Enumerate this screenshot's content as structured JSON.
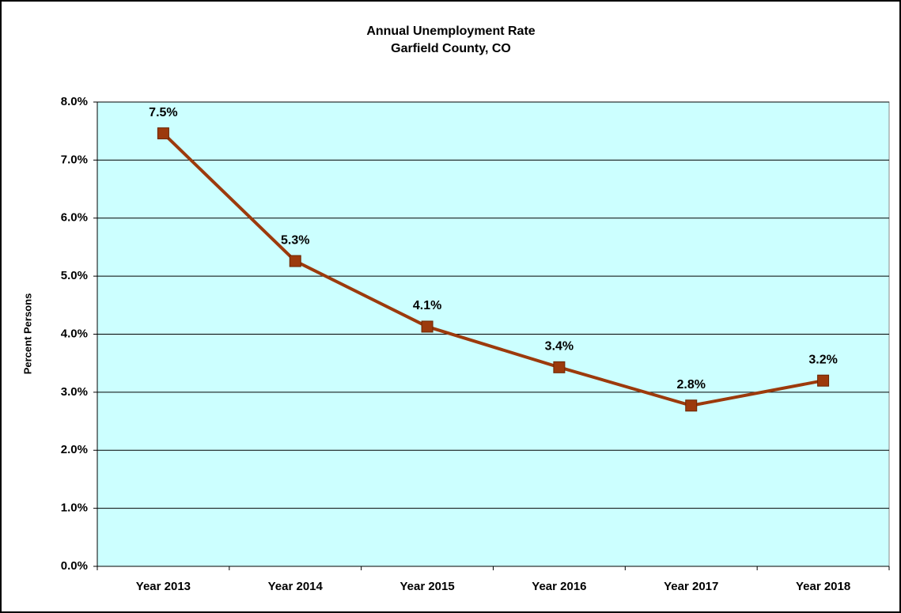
{
  "chart_data": {
    "type": "line",
    "title": "Annual Unemployment Rate",
    "subtitle": "Garfield County, CO",
    "y_label": "Percent Persons",
    "categories": [
      "Year 2013",
      "Year 2014",
      "Year 2015",
      "Year 2016",
      "Year 2017",
      "Year 2018"
    ],
    "series": [
      {
        "name": "Unemployment Rate",
        "color": "#9c3a0c",
        "values": [
          7.46,
          5.26,
          4.13,
          3.43,
          2.77,
          3.2
        ],
        "value_labels": [
          "7.5%",
          "5.3%",
          "4.1%",
          "3.4%",
          "2.8%",
          "3.2%"
        ]
      }
    ],
    "ylim": [
      0,
      8
    ],
    "yticks": [
      {
        "value": 0,
        "label": "0.0%"
      },
      {
        "value": 1,
        "label": "1.0%"
      },
      {
        "value": 2,
        "label": "2.0%"
      },
      {
        "value": 3,
        "label": "3.0%"
      },
      {
        "value": 4,
        "label": "4.0%"
      },
      {
        "value": 5,
        "label": "5.0%"
      },
      {
        "value": 6,
        "label": "6.0%"
      },
      {
        "value": 7,
        "label": "7.0%"
      },
      {
        "value": 8,
        "label": "8.0%"
      }
    ],
    "grid": true,
    "plot_background": "#ccffff"
  }
}
